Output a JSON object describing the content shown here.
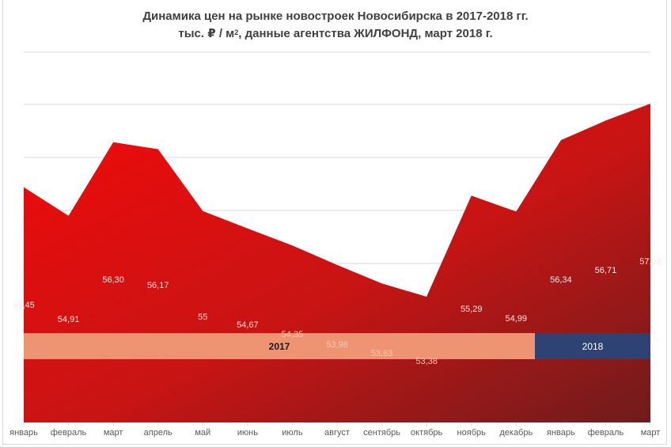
{
  "title": {
    "line1": "Динамика цен на рынке новостроек Новосибирска в 2017-2018 гг.",
    "line2_prefix": "тыс. ₽ / м",
    "line2_sup": "2",
    "line2_suffix": ", данные агентства ЖИЛФОНД, март 2018 г."
  },
  "colors": {
    "area_top_left": "#f20a0a",
    "area_mid": "#c81414",
    "area_bottom_right": "#6e1c1c",
    "band_2017": "#ef9473",
    "band_2018": "#2e4374",
    "gridline": "#d9d9d9",
    "axis_text": "#595959"
  },
  "bands": [
    {
      "label": "2017",
      "color": "#ef9473",
      "text_color": "#1a1a1a"
    },
    {
      "label": "2018",
      "color": "#2e4374",
      "text_color": "#ffffff"
    }
  ],
  "chart_data": {
    "type": "area",
    "title": "Динамика цен на рынке новостроек Новосибирска в 2017-2018 гг.",
    "subtitle": "тыс. ₽ / м², данные агентства ЖИЛФОНД, март 2018 г.",
    "xlabel": "",
    "ylabel": "тыс. ₽ / м²",
    "categories": [
      "январь",
      "февраль",
      "март",
      "апрель",
      "май",
      "июнь",
      "июль",
      "август",
      "сентябрь",
      "октябрь",
      "ноябрь",
      "декабрь",
      "январь",
      "февраль",
      "март"
    ],
    "years": [
      "2017",
      "2017",
      "2017",
      "2017",
      "2017",
      "2017",
      "2017",
      "2017",
      "2017",
      "2017",
      "2017",
      "2017",
      "2018",
      "2018",
      "2018"
    ],
    "values": [
      55.45,
      54.91,
      56.3,
      56.17,
      55.0,
      54.67,
      54.35,
      53.98,
      53.63,
      53.38,
      55.29,
      54.99,
      56.34,
      56.71,
      57.03
    ],
    "value_labels": [
      "55,45",
      "54,91",
      "56,30",
      "56,17",
      "55",
      "54,67",
      "54,35",
      "53,98",
      "53,63",
      "53,38",
      "55,29",
      "54,99",
      "56,34",
      "56,71",
      "57,03"
    ],
    "grid": true,
    "legend": "none",
    "year_bands": [
      {
        "label": "2017",
        "from": "январь",
        "to": "декабрь"
      },
      {
        "label": "2018",
        "from": "январь",
        "to": "март"
      }
    ]
  }
}
